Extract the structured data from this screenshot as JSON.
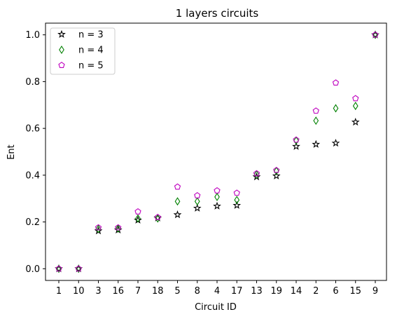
{
  "chart_data": {
    "type": "scatter",
    "title": "1 layers circuits",
    "xlabel": "Circuit ID",
    "ylabel": "Ent",
    "categories": [
      "1",
      "10",
      "3",
      "16",
      "7",
      "18",
      "5",
      "8",
      "4",
      "17",
      "13",
      "19",
      "14",
      "2",
      "6",
      "15",
      "9"
    ],
    "ylim": [
      -0.05,
      1.05
    ],
    "yticks": [
      "0.0",
      "0.2",
      "0.4",
      "0.6",
      "0.8",
      "1.0"
    ],
    "grid": false,
    "legend_position": "top-left",
    "series": [
      {
        "name": "n = 3",
        "marker": "star",
        "color": "#000000",
        "values": [
          0.0,
          0.0,
          0.162,
          0.166,
          0.208,
          0.217,
          0.231,
          0.259,
          0.268,
          0.271,
          0.393,
          0.397,
          0.523,
          0.532,
          0.537,
          0.627,
          1.0
        ]
      },
      {
        "name": "n = 4",
        "marker": "thin_diamond",
        "color": "#008000",
        "values": [
          0.0,
          0.0,
          0.17,
          0.172,
          0.215,
          0.215,
          0.288,
          0.288,
          0.307,
          0.294,
          0.403,
          0.418,
          0.548,
          0.633,
          0.686,
          0.696,
          1.0
        ]
      },
      {
        "name": "n = 5",
        "marker": "pentagon",
        "color": "#bf00bf",
        "values": [
          0.0,
          0.0,
          0.176,
          0.176,
          0.244,
          0.22,
          0.35,
          0.313,
          0.334,
          0.324,
          0.407,
          0.421,
          0.551,
          0.675,
          0.795,
          0.728,
          1.0
        ]
      }
    ]
  }
}
